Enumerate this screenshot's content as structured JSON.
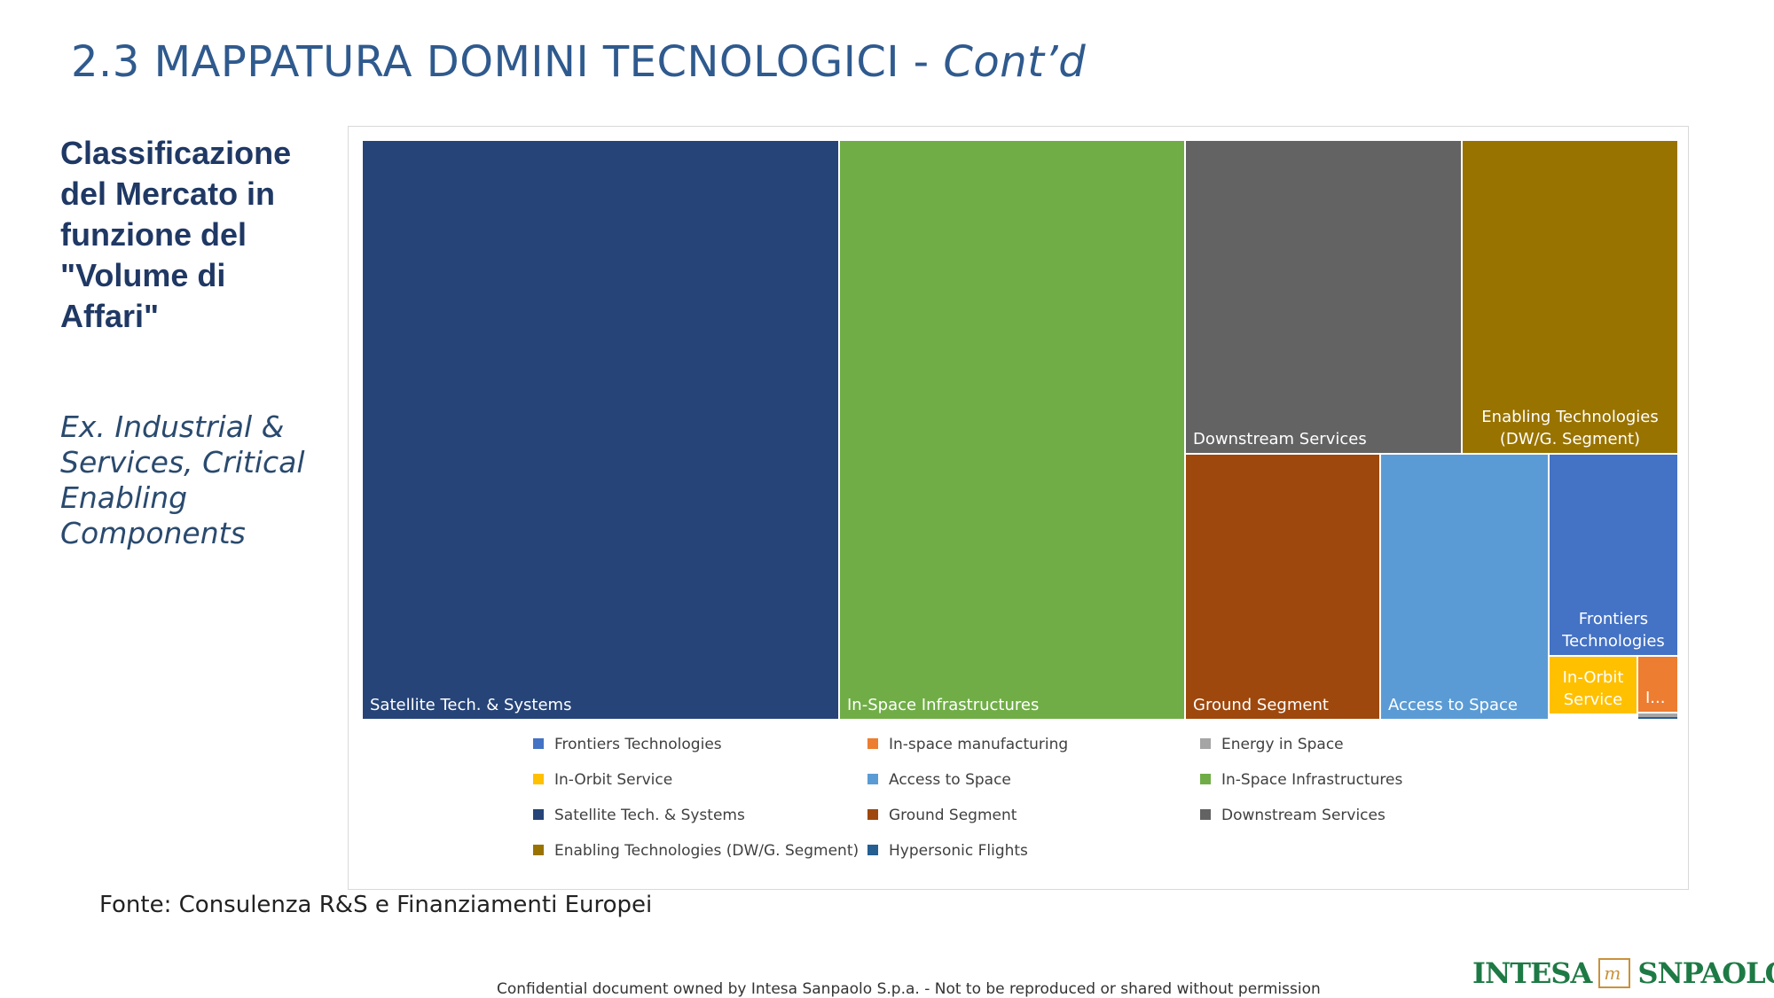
{
  "slide": {
    "title_main": "2.3 MAPPATURA DOMINI TECNOLOGICI - ",
    "title_cont": "Cont’d",
    "heading": "Classificazione del Mercato in funzione del \"Volume di Affari\"",
    "subheading": "Ex. Industrial & Services, Critical Enabling Components",
    "source": "Fonte: Consulenza R&S e Finanziamenti Europei",
    "footer": "Confidential document owned by Intesa Sanpaolo S.p.a. - Not to be reproduced or shared without permission",
    "logo_left": "INTESA",
    "logo_right": "SNPAOLO",
    "logo_mark": "m"
  },
  "chart_data": {
    "type": "treemap",
    "title": "",
    "legend_position": "bottom",
    "categories": [
      {
        "name": "Satellite Tech. & Systems",
        "label": "Satellite Tech. & Systems",
        "value": 208,
        "color": "#264478"
      },
      {
        "name": "In-Space Infrastructures",
        "label": "In-Space Infrastructures",
        "value": 150,
        "color": "#70ad47"
      },
      {
        "name": "Downstream Services",
        "label": "Downstream Services",
        "value": 65,
        "color": "#636363"
      },
      {
        "name": "Enabling Technologies (DW/G. Segment)",
        "label": "Enabling Technologies (DW/G. Segment)",
        "value": 51,
        "color": "#997300"
      },
      {
        "name": "Ground Segment",
        "label": "Ground Segment",
        "value": 38,
        "color": "#9e480e"
      },
      {
        "name": "Access to Space",
        "label": "Access to Space",
        "value": 32,
        "color": "#5b9bd5"
      },
      {
        "name": "Frontiers Technologies",
        "label": "Frontiers Technologies",
        "value": 17,
        "color": "#4472c4"
      },
      {
        "name": "In-Orbit Service",
        "label": "In-Orbit Service",
        "value": 8,
        "color": "#ffc000"
      },
      {
        "name": "In-space manufacturing",
        "label": "I...",
        "value": 4,
        "color": "#ed7d31"
      },
      {
        "name": "Energy in Space",
        "label": "",
        "value": 0.5,
        "color": "#a5a5a5"
      },
      {
        "name": "Hypersonic Flights",
        "label": "",
        "value": 0.2,
        "color": "#255e91"
      }
    ],
    "legend": [
      "Frontiers Technologies",
      "In-space manufacturing",
      "Energy in Space",
      "In-Orbit Service",
      "Access to Space",
      "In-Space Infrastructures",
      "Satellite Tech. & Systems",
      "Ground Segment",
      "Downstream Services",
      "Enabling Technologies (DW/G. Segment)",
      "Hypersonic Flights"
    ]
  }
}
